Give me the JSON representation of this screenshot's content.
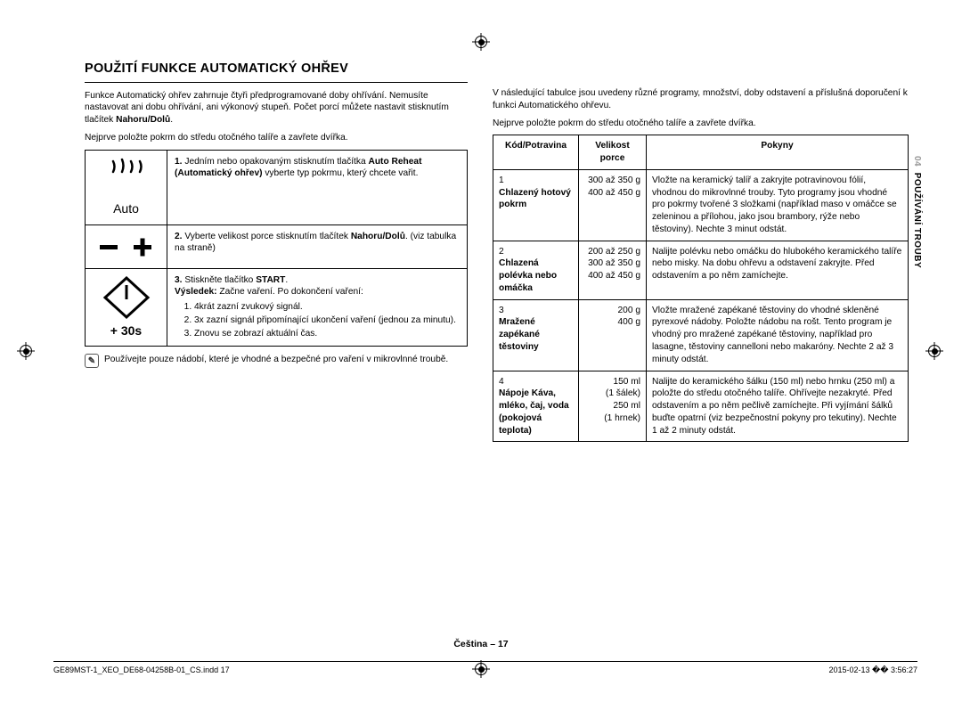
{
  "heading": "POUŽITÍ FUNKCE AUTOMATICKÝ OHŘEV",
  "left": {
    "intro1_a": "Funkce Automatický ohřev zahrnuje čtyři předprogramované doby ohřívání. Nemusíte nastavovat ani dobu ohřívání, ani výkonový stupeň. Počet porcí můžete nastavit stisknutím tlačítek ",
    "intro1_b": "Nahoru/Dolů",
    "intro1_c": ".",
    "intro2": "Nejprve položte pokrm do středu otočného talíře a zavřete dvířka.",
    "step1_lead": "1.",
    "step1_a": "Jedním nebo opakovaným stisknutím tlačítka ",
    "step1_b1": "Auto Reheat (Automatický ohřev)",
    "step1_c": " vyberte typ pokrmu, který chcete vařit.",
    "step2_lead": "2.",
    "step2_a": "Vyberte velikost porce stisknutím tlačítek ",
    "step2_b": "Nahoru/Dolů",
    "step2_c": ". (viz tabulka na straně)",
    "step3_lead": "3.",
    "step3_a": "Stiskněte tlačítko ",
    "step3_b": "START",
    "step3_c": ".",
    "step3_out_l": "Výsledek:",
    "step3_out_t": " Začne vaření. Po dokončení vaření:",
    "step3_li1": "4krát zazní zvukový signál.",
    "step3_li2": "3x zazní signál připomínající ukončení vaření (jednou za minutu).",
    "step3_li3": "Znovu se zobrazí aktuální čas.",
    "auto_label": "Auto",
    "plus30": "+ 30s",
    "note": "Používejte pouze nádobí, které je vhodné a bezpečné pro vaření v mikrovlnné troubě."
  },
  "right": {
    "intro1": "V následující tabulce jsou uvedeny různé programy, množství, doby odstavení a příslušná doporučení k funkci Automatického ohřevu.",
    "intro2": "Nejprve položte pokrm do středu otočného talíře a zavřete dvířka.",
    "th1": "Kód/Potravina",
    "th2": "Velikost porce",
    "th3": "Pokyny",
    "rows": [
      {
        "code_n": "1",
        "code": "Chlazený hotový pokrm",
        "portion": "300 až 350 g\n400 až 450 g",
        "instr": "Vložte na keramický talíř a zakryjte potravinovou fólií, vhodnou do mikrovlnné trouby. Tyto programy jsou vhodné pro pokrmy tvořené 3 složkami (například maso v omáčce se zeleninou a přílohou, jako jsou brambory, rýže nebo těstoviny). Nechte 3 minut odstát."
      },
      {
        "code_n": "2",
        "code": "Chlazená polévka nebo omáčka",
        "portion": "200 až 250 g\n300 až 350 g\n400 až 450 g",
        "instr": "Nalijte polévku nebo omáčku do hlubokého keramického talíře nebo misky. Na dobu ohřevu a odstavení zakryjte. Před odstavením a po něm zamíchejte."
      },
      {
        "code_n": "3",
        "code": "Mražené zapékané těstoviny",
        "portion": "200 g\n400 g",
        "instr": "Vložte mražené zapékané těstoviny do vhodné skleněné pyrexové nádoby. Položte nádobu na rošt. Tento program je vhodný pro mražené zapékané těstoviny, například pro lasagne, těstoviny cannelloni nebo makaróny. Nechte 2 až 3 minuty odstát."
      },
      {
        "code_n": "4",
        "code": "Nápoje Káva, mléko, čaj, voda (pokojová teplota)",
        "portion": "150 ml\n(1 šálek)\n250 ml\n(1 hrnek)",
        "instr": "Nalijte do keramického šálku (150 ml) nebo hrnku (250 ml) a položte do středu otočného talíře. Ohřívejte nezakryté. Před odstavením a po něm pečlivě zamíchejte. Při vyjímání šálků buďte opatrní (viz bezpečnostní pokyny pro tekutiny). Nechte 1 až 2 minuty odstát."
      }
    ]
  },
  "sidebar_num": "04",
  "sidebar_text": "POUŽÍVÁNÍ TROUBY",
  "page_label": "Čeština – 17",
  "foot_left": "GE89MST-1_XEO_DE68-04258B-01_CS.indd   17",
  "foot_right": "2015-02-13   �� 3:56:27"
}
